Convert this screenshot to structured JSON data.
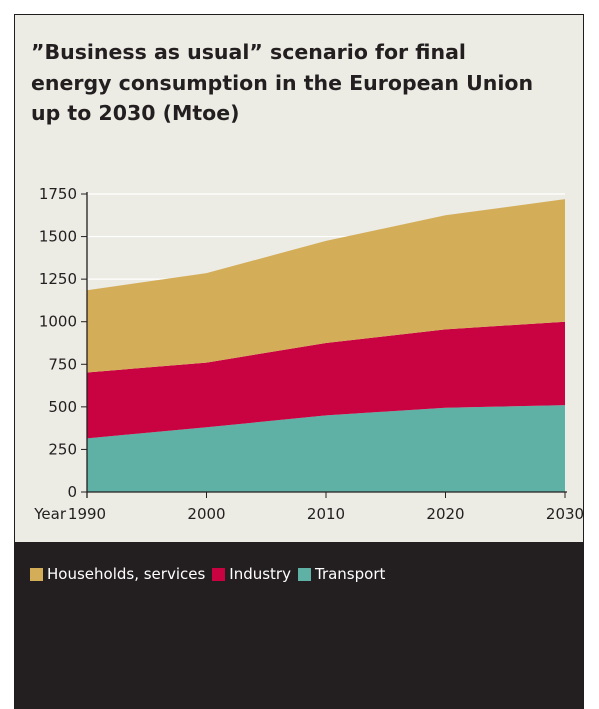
{
  "chart_data": {
    "type": "area",
    "stacked": true,
    "title": "”Business as usual” scenario for final energy consumption in the European Union up to 2030 (Mtoe)",
    "xlabel": "Year",
    "ylabel": "",
    "x": [
      1990,
      2000,
      2010,
      2020,
      2030
    ],
    "x_tick_labels": [
      "1990",
      "2000",
      "2010",
      "2020",
      "2030"
    ],
    "ylim": [
      0,
      1750
    ],
    "y_ticks": [
      0,
      250,
      500,
      750,
      1000,
      1250,
      1500,
      1750
    ],
    "grid": "horizontal",
    "legend_position": "bottom",
    "series": [
      {
        "name": "Transport",
        "color": "#5fb0a5",
        "values": [
          315,
          380,
          450,
          495,
          510
        ]
      },
      {
        "name": "Industry",
        "color": "#c90341",
        "values": [
          387,
          380,
          425,
          460,
          490
        ]
      },
      {
        "name": "Households, services",
        "color": "#d4ad59",
        "values": [
          483,
          525,
          600,
          670,
          720
        ]
      }
    ]
  },
  "legend": {
    "items": [
      {
        "label": "Households, services",
        "color": "#d4ad59"
      },
      {
        "label": "Industry",
        "color": "#c90341"
      },
      {
        "label": "Transport",
        "color": "#5fb0a5"
      }
    ]
  }
}
